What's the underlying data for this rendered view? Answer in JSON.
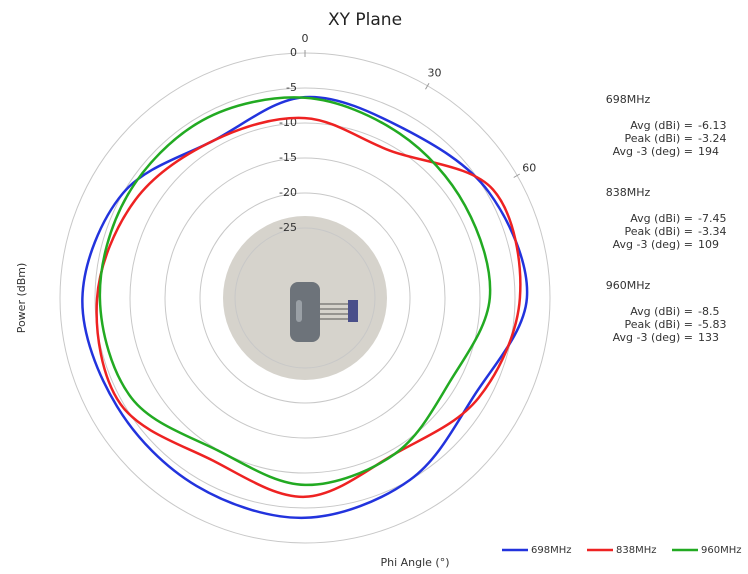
{
  "chart_data": {
    "type": "polar",
    "title": "XY Plane",
    "xlabel": "Phi Angle (°)",
    "ylabel": "Power (dBm)",
    "theta": [
      0,
      30,
      60,
      90,
      120,
      150,
      180,
      210,
      240,
      270,
      300,
      330
    ],
    "thetaticks": [
      0,
      30,
      60
    ],
    "rlim": [
      -35,
      0
    ],
    "rticks": [
      0,
      -5,
      -10,
      -15,
      -20,
      -25
    ],
    "series": [
      {
        "name": "698MHz",
        "color": "#2233dd",
        "values": [
          -6.3,
          -7,
          -4.7,
          -3.3,
          -7.1,
          -5,
          -3.6,
          -4,
          -4,
          -3.2,
          -5,
          -9
        ]
      },
      {
        "name": "838MHz",
        "color": "#ee2222",
        "values": [
          -9.3,
          -10.7,
          -4,
          -4.3,
          -6.4,
          -9.3,
          -6.6,
          -8.3,
          -4.6,
          -5.3,
          -7,
          -9
        ]
      },
      {
        "name": "960MHz",
        "color": "#22aa22",
        "values": [
          -6.4,
          -7.9,
          -8.6,
          -8.6,
          -11.1,
          -9.3,
          -8.3,
          -9.9,
          -6.4,
          -5.7,
          -5.7,
          -5.7
        ]
      }
    ],
    "stats": [
      {
        "name": "698MHz",
        "rows": [
          {
            "label": "Avg (dBi) =",
            "value": -6.13
          },
          {
            "label": "Peak (dBi) =",
            "value": -3.24
          },
          {
            "label": "Avg -3 (deg) =",
            "value": 194
          }
        ]
      },
      {
        "name": "838MHz",
        "rows": [
          {
            "label": "Avg (dBi) =",
            "value": -7.45
          },
          {
            "label": "Peak (dBi) =",
            "value": -3.34
          },
          {
            "label": "Avg -3 (deg) =",
            "value": 109
          }
        ]
      },
      {
        "name": "960MHz",
        "rows": [
          {
            "label": "Avg (dBi) =",
            "value": -8.5
          },
          {
            "label": "Peak (dBi) =",
            "value": -5.83
          },
          {
            "label": "Avg -3 (deg) =",
            "value": 133
          }
        ]
      }
    ]
  }
}
